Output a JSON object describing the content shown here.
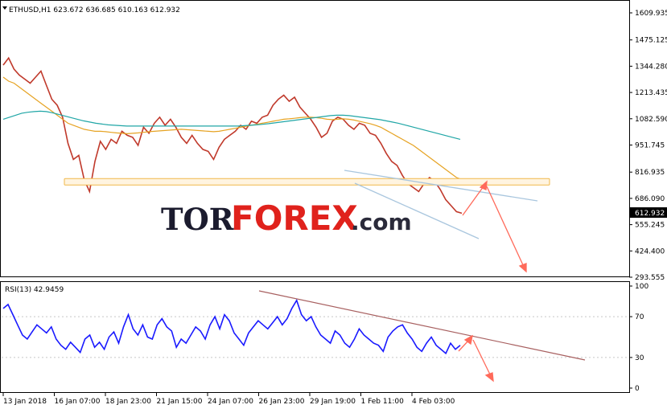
{
  "chart_data": [
    {
      "type": "line",
      "title": "ETHUSD,H1",
      "ohlc_readout": "623.672 636.685 610.163 612.932",
      "y_ticks": [
        "1609.935",
        "1475.125",
        "1344.280",
        "1213.435",
        "1082.590",
        "951.745",
        "816.935",
        "686.090",
        "555.245",
        "424.400",
        "293.555"
      ],
      "ylim": [
        293.555,
        1609.935
      ],
      "last_price_label": "612.932",
      "x_ticks": [
        "13 Jan 2018",
        "16 Jan 07:00",
        "18 Jan 23:00",
        "21 Jan 15:00",
        "24 Jan 07:00",
        "26 Jan 23:00",
        "29 Jan 19:00",
        "1 Feb 11:00",
        "4 Feb 03:00"
      ],
      "series": [
        {
          "name": "",
          "color": "#c0392b",
          "values": [
            1350,
            1385,
            1330,
            1300,
            1280,
            1260,
            1290,
            1320,
            1250,
            1180,
            1150,
            1090,
            960,
            880,
            900,
            780,
            720,
            870,
            970,
            930,
            980,
            960,
            1020,
            1000,
            990,
            950,
            1040,
            1010,
            1060,
            1090,
            1050,
            1080,
            1040,
            990,
            960,
            1000,
            960,
            930,
            920,
            880,
            940,
            980,
            1000,
            1020,
            1050,
            1030,
            1070,
            1060,
            1090,
            1100,
            1150,
            1180,
            1200,
            1170,
            1190,
            1140,
            1110,
            1080,
            1040,
            990,
            1010,
            1070,
            1090,
            1080,
            1050,
            1030,
            1060,
            1050,
            1010,
            1000,
            960,
            910,
            870,
            850,
            800,
            760,
            740,
            720,
            760,
            790,
            770,
            730,
            680,
            650,
            620,
            612
          ]
        },
        {
          "name": "",
          "color": "#e6a323",
          "values": [
            1290,
            1270,
            1260,
            1240,
            1220,
            1200,
            1180,
            1160,
            1140,
            1120,
            1100,
            1080,
            1060,
            1050,
            1040,
            1030,
            1025,
            1020,
            1020,
            1018,
            1015,
            1012,
            1010,
            1008,
            1010,
            1012,
            1015,
            1018,
            1020,
            1022,
            1024,
            1026,
            1028,
            1030,
            1028,
            1026,
            1024,
            1022,
            1020,
            1018,
            1020,
            1025,
            1030,
            1035,
            1040,
            1045,
            1050,
            1055,
            1060,
            1065,
            1070,
            1075,
            1080,
            1082,
            1085,
            1088,
            1090,
            1090,
            1088,
            1085,
            1080,
            1078,
            1080,
            1082,
            1080,
            1076,
            1070,
            1064,
            1058,
            1050,
            1040,
            1025,
            1010,
            995,
            980,
            965,
            950,
            930,
            910,
            890,
            870,
            850,
            830,
            810,
            790,
            780
          ]
        },
        {
          "name": "",
          "color": "#20a6a6",
          "values": [
            1080,
            1090,
            1100,
            1110,
            1115,
            1118,
            1120,
            1118,
            1112,
            1104,
            1096,
            1088,
            1080,
            1072,
            1066,
            1060,
            1056,
            1052,
            1050,
            1048,
            1046,
            1046,
            1046,
            1046,
            1046,
            1046,
            1046,
            1046,
            1046,
            1046,
            1046,
            1046,
            1046,
            1046,
            1046,
            1046,
            1046,
            1046,
            1046,
            1048,
            1050,
            1052,
            1055,
            1058,
            1062,
            1066,
            1070,
            1074,
            1078,
            1082,
            1086,
            1090,
            1094,
            1098,
            1100,
            1100,
            1098,
            1094,
            1090,
            1086,
            1082,
            1078,
            1072,
            1066,
            1060,
            1052,
            1044,
            1036,
            1028,
            1020,
            1012,
            1004,
            996,
            988,
            980
          ]
        }
      ],
      "support_zone": [
        757,
        785
      ]
    },
    {
      "type": "line",
      "title": "RSI(13) 42.9459",
      "y_ticks": [
        "100",
        "70",
        "30",
        "0"
      ],
      "ylim": [
        0,
        100
      ],
      "x_ticks": [
        "13 Jan 2018",
        "16 Jan 07:00",
        "18 Jan 23:00",
        "21 Jan 15:00",
        "24 Jan 07:00",
        "26 Jan 23:00",
        "29 Jan 19:00",
        "1 Feb 11:00",
        "4 Feb 03:00"
      ],
      "series": [
        {
          "name": "",
          "color": "#1a1aff",
          "values": [
            78,
            82,
            72,
            62,
            52,
            48,
            55,
            62,
            58,
            54,
            60,
            48,
            42,
            38,
            45,
            40,
            35,
            48,
            52,
            40,
            45,
            38,
            50,
            55,
            44,
            60,
            72,
            58,
            52,
            62,
            50,
            48,
            62,
            68,
            60,
            56,
            40,
            48,
            44,
            52,
            60,
            56,
            48,
            62,
            70,
            58,
            72,
            66,
            54,
            48,
            42,
            54,
            60,
            66,
            62,
            58,
            64,
            70,
            62,
            68,
            78,
            86,
            72,
            66,
            70,
            60,
            52,
            48,
            44,
            56,
            52,
            44,
            40,
            48,
            58,
            52,
            48,
            44,
            42,
            36,
            50,
            56,
            60,
            62,
            54,
            48,
            40,
            36,
            44,
            50,
            42,
            38,
            34,
            44,
            38,
            42
          ]
        }
      ]
    }
  ],
  "watermark": {
    "part1": "TOR",
    "part2": "FOREX",
    "part3": ".com"
  },
  "colors": {
    "candle": "#c0392b",
    "ma_fast": "#e6a323",
    "ma_slow": "#20a6a6",
    "rsi": "#1a1aff",
    "arrow": "#ff6a5a",
    "channel": "#a9c6de",
    "rsi_trend": "#a86060",
    "zone_border": "#f0b84a",
    "zone_fill": "#fff4e0",
    "watermark_dark": "#1b1b2e",
    "watermark_red": "#e0221c",
    "watermark_dot": "#2a2a3a"
  }
}
